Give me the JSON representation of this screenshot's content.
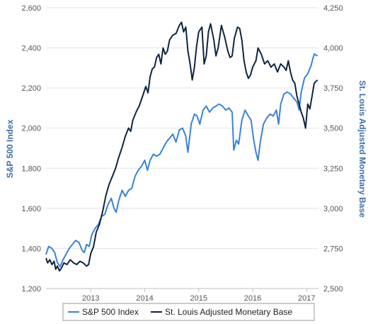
{
  "chart_data": {
    "type": "line",
    "y_left_label": "S&P 500 Index",
    "y_right_label": "St. Louis Adjusted Monetary Base",
    "x_ticks": [
      "2013",
      "2014",
      "2015",
      "2016",
      "2017"
    ],
    "x_range": [
      2012.17,
      2017.22
    ],
    "y_left_range": [
      1200,
      2600
    ],
    "y_left_ticks": [
      "1,200",
      "1,400",
      "1,600",
      "1,800",
      "2,000",
      "2,200",
      "2,400",
      "2,600"
    ],
    "y_right_range": [
      2500,
      4250
    ],
    "y_right_ticks": [
      "2,500",
      "2,750",
      "3,000",
      "3,250",
      "3,500",
      "3,750",
      "4,000",
      "4,250"
    ],
    "grid": true,
    "legend_position": "bottom",
    "series": [
      {
        "name": "S&P 500 Index",
        "axis": "left",
        "color": "#3a83d4",
        "points": [
          [
            2012.17,
            1370
          ],
          [
            2012.22,
            1410
          ],
          [
            2012.28,
            1400
          ],
          [
            2012.33,
            1380
          ],
          [
            2012.38,
            1330
          ],
          [
            2012.43,
            1310
          ],
          [
            2012.48,
            1340
          ],
          [
            2012.54,
            1370
          ],
          [
            2012.6,
            1400
          ],
          [
            2012.66,
            1420
          ],
          [
            2012.72,
            1440
          ],
          [
            2012.78,
            1430
          ],
          [
            2012.84,
            1390
          ],
          [
            2012.88,
            1380
          ],
          [
            2012.92,
            1420
          ],
          [
            2012.97,
            1410
          ],
          [
            2013.02,
            1470
          ],
          [
            2013.08,
            1500
          ],
          [
            2013.14,
            1520
          ],
          [
            2013.2,
            1560
          ],
          [
            2013.26,
            1570
          ],
          [
            2013.32,
            1620
          ],
          [
            2013.38,
            1650
          ],
          [
            2013.43,
            1600
          ],
          [
            2013.47,
            1580
          ],
          [
            2013.52,
            1640
          ],
          [
            2013.58,
            1690
          ],
          [
            2013.64,
            1660
          ],
          [
            2013.7,
            1690
          ],
          [
            2013.76,
            1700
          ],
          [
            2013.82,
            1760
          ],
          [
            2013.88,
            1790
          ],
          [
            2013.94,
            1810
          ],
          [
            2014.0,
            1840
          ],
          [
            2014.05,
            1790
          ],
          [
            2014.1,
            1840
          ],
          [
            2014.16,
            1870
          ],
          [
            2014.22,
            1860
          ],
          [
            2014.28,
            1870
          ],
          [
            2014.34,
            1900
          ],
          [
            2014.4,
            1930
          ],
          [
            2014.46,
            1950
          ],
          [
            2014.52,
            1970
          ],
          [
            2014.58,
            1930
          ],
          [
            2014.64,
            1990
          ],
          [
            2014.7,
            2000
          ],
          [
            2014.76,
            1960
          ],
          [
            2014.8,
            1880
          ],
          [
            2014.86,
            2020
          ],
          [
            2014.92,
            2070
          ],
          [
            2014.97,
            2060
          ],
          [
            2015.02,
            2020
          ],
          [
            2015.08,
            2090
          ],
          [
            2015.14,
            2110
          ],
          [
            2015.2,
            2080
          ],
          [
            2015.26,
            2100
          ],
          [
            2015.32,
            2110
          ],
          [
            2015.38,
            2120
          ],
          [
            2015.44,
            2110
          ],
          [
            2015.5,
            2090
          ],
          [
            2015.56,
            2100
          ],
          [
            2015.62,
            2080
          ],
          [
            2015.65,
            1890
          ],
          [
            2015.7,
            1940
          ],
          [
            2015.74,
            1920
          ],
          [
            2015.8,
            2040
          ],
          [
            2015.86,
            2090
          ],
          [
            2015.92,
            2060
          ],
          [
            2015.97,
            2040
          ],
          [
            2016.02,
            1940
          ],
          [
            2016.06,
            1880
          ],
          [
            2016.1,
            1840
          ],
          [
            2016.14,
            1930
          ],
          [
            2016.2,
            2020
          ],
          [
            2016.26,
            2050
          ],
          [
            2016.32,
            2070
          ],
          [
            2016.38,
            2060
          ],
          [
            2016.44,
            2090
          ],
          [
            2016.48,
            2020
          ],
          [
            2016.52,
            2120
          ],
          [
            2016.58,
            2170
          ],
          [
            2016.64,
            2180
          ],
          [
            2016.7,
            2170
          ],
          [
            2016.76,
            2150
          ],
          [
            2016.82,
            2130
          ],
          [
            2016.86,
            2090
          ],
          [
            2016.9,
            2180
          ],
          [
            2016.96,
            2250
          ],
          [
            2017.02,
            2270
          ],
          [
            2017.08,
            2310
          ],
          [
            2017.14,
            2370
          ],
          [
            2017.2,
            2360
          ]
        ]
      },
      {
        "name": "St. Louis Adjusted Monetary Base",
        "axis": "right",
        "color": "#0f2540",
        "points": [
          [
            2012.17,
            2690
          ],
          [
            2012.2,
            2660
          ],
          [
            2012.24,
            2680
          ],
          [
            2012.28,
            2650
          ],
          [
            2012.32,
            2670
          ],
          [
            2012.35,
            2620
          ],
          [
            2012.38,
            2640
          ],
          [
            2012.42,
            2610
          ],
          [
            2012.46,
            2630
          ],
          [
            2012.5,
            2660
          ],
          [
            2012.56,
            2650
          ],
          [
            2012.62,
            2680
          ],
          [
            2012.68,
            2660
          ],
          [
            2012.74,
            2650
          ],
          [
            2012.8,
            2670
          ],
          [
            2012.86,
            2660
          ],
          [
            2012.92,
            2640
          ],
          [
            2012.96,
            2650
          ],
          [
            2013.0,
            2720
          ],
          [
            2013.05,
            2760
          ],
          [
            2013.1,
            2850
          ],
          [
            2013.16,
            2900
          ],
          [
            2013.22,
            2980
          ],
          [
            2013.28,
            3080
          ],
          [
            2013.34,
            3150
          ],
          [
            2013.4,
            3200
          ],
          [
            2013.46,
            3250
          ],
          [
            2013.52,
            3320
          ],
          [
            2013.58,
            3380
          ],
          [
            2013.64,
            3450
          ],
          [
            2013.7,
            3500
          ],
          [
            2013.74,
            3480
          ],
          [
            2013.78,
            3550
          ],
          [
            2013.84,
            3600
          ],
          [
            2013.9,
            3640
          ],
          [
            2013.96,
            3700
          ],
          [
            2014.02,
            3760
          ],
          [
            2014.06,
            3720
          ],
          [
            2014.1,
            3820
          ],
          [
            2014.14,
            3870
          ],
          [
            2014.18,
            3880
          ],
          [
            2014.22,
            3940
          ],
          [
            2014.26,
            3960
          ],
          [
            2014.3,
            3900
          ],
          [
            2014.34,
            4000
          ],
          [
            2014.38,
            3960
          ],
          [
            2014.42,
            3980
          ],
          [
            2014.46,
            4050
          ],
          [
            2014.52,
            4080
          ],
          [
            2014.58,
            4090
          ],
          [
            2014.64,
            4140
          ],
          [
            2014.68,
            4160
          ],
          [
            2014.72,
            4100
          ],
          [
            2014.76,
            4130
          ],
          [
            2014.8,
            3980
          ],
          [
            2014.84,
            3900
          ],
          [
            2014.88,
            3800
          ],
          [
            2014.92,
            3880
          ],
          [
            2014.96,
            4010
          ],
          [
            2015.0,
            4100
          ],
          [
            2015.06,
            4130
          ],
          [
            2015.1,
            3900
          ],
          [
            2015.14,
            3950
          ],
          [
            2015.18,
            4100
          ],
          [
            2015.22,
            4150
          ],
          [
            2015.28,
            4050
          ],
          [
            2015.32,
            3950
          ],
          [
            2015.36,
            4000
          ],
          [
            2015.42,
            4140
          ],
          [
            2015.48,
            4070
          ],
          [
            2015.54,
            3980
          ],
          [
            2015.58,
            3940
          ],
          [
            2015.62,
            3950
          ],
          [
            2015.66,
            4060
          ],
          [
            2015.72,
            4130
          ],
          [
            2015.76,
            4120
          ],
          [
            2015.8,
            4050
          ],
          [
            2015.84,
            3920
          ],
          [
            2015.88,
            3850
          ],
          [
            2015.92,
            3810
          ],
          [
            2015.96,
            3830
          ],
          [
            2016.0,
            3880
          ],
          [
            2016.06,
            3920
          ],
          [
            2016.1,
            4000
          ],
          [
            2016.16,
            3960
          ],
          [
            2016.22,
            3900
          ],
          [
            2016.28,
            3920
          ],
          [
            2016.34,
            3880
          ],
          [
            2016.4,
            3900
          ],
          [
            2016.46,
            3850
          ],
          [
            2016.52,
            3900
          ],
          [
            2016.58,
            3880
          ],
          [
            2016.62,
            3860
          ],
          [
            2016.66,
            3920
          ],
          [
            2016.7,
            3850
          ],
          [
            2016.74,
            3800
          ],
          [
            2016.78,
            3780
          ],
          [
            2016.82,
            3700
          ],
          [
            2016.86,
            3650
          ],
          [
            2016.9,
            3600
          ],
          [
            2016.94,
            3560
          ],
          [
            2016.98,
            3500
          ],
          [
            2017.02,
            3650
          ],
          [
            2017.06,
            3620
          ],
          [
            2017.1,
            3700
          ],
          [
            2017.14,
            3780
          ],
          [
            2017.2,
            3800
          ]
        ]
      }
    ]
  }
}
